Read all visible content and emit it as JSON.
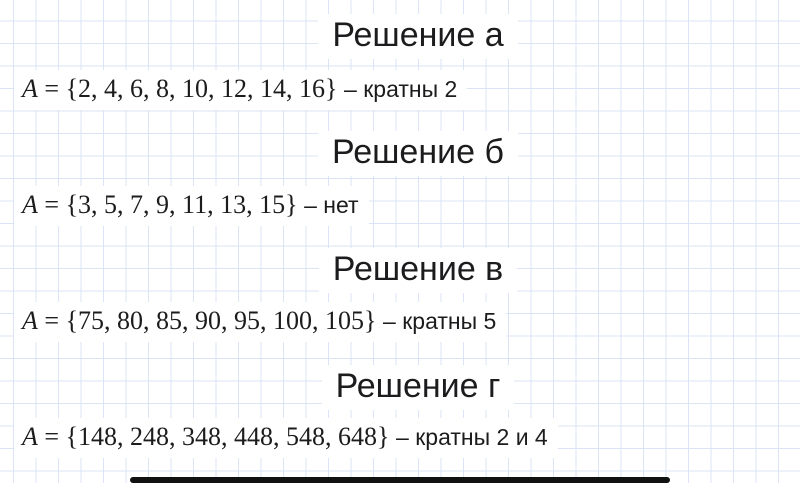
{
  "sections": [
    {
      "heading": "Решение а",
      "var": "A",
      "eq": "=",
      "set": "{2, 4, 6, 8, 10, 12, 14, 16}",
      "note": "– кратны 2"
    },
    {
      "heading": "Решение б",
      "var": "A",
      "eq": "=",
      "set": "{3, 5, 7, 9, 11, 13, 15}",
      "note": "– нет"
    },
    {
      "heading": "Решение в",
      "var": "A",
      "eq": "=",
      "set": "{75, 80, 85, 90, 95, 100, 105}",
      "note": "– кратны 5"
    },
    {
      "heading": "Решение г",
      "var": "A",
      "eq": "=",
      "set": "{148, 248, 348, 448, 548, 648}",
      "note": "– кратны 2 и 4"
    }
  ],
  "colors": {
    "background": "#ffffff",
    "grid_line": "#dbe4f6",
    "text": "#1c1c1e",
    "bottom_bar": "#111111"
  }
}
